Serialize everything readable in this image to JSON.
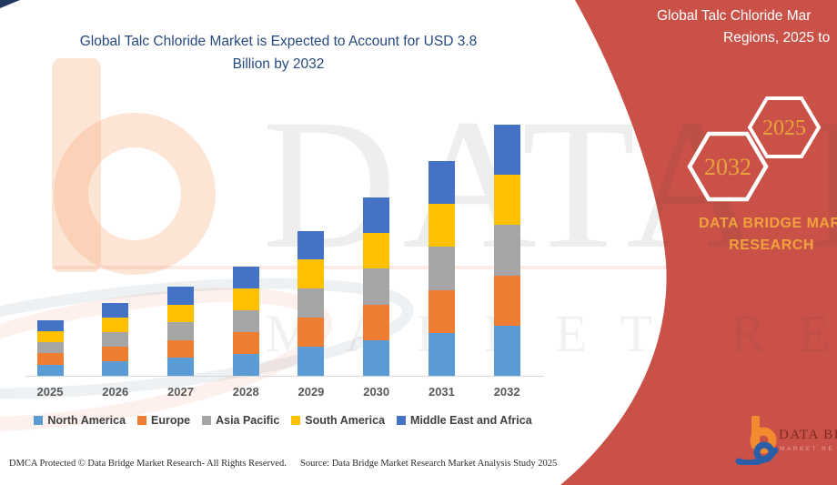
{
  "title": {
    "line1": "Global Talc Chloride Market is Expected to Account for USD 3.8",
    "line2": "Billion by 2032"
  },
  "side_panel": {
    "heading_line1": "Global Talc Chloride Mar",
    "heading_line2": "Regions, 2025 to",
    "hexagon_back_label": "2032",
    "hexagon_front_label": "2025",
    "brand_line1": "DATA BRIDGE MARK",
    "brand_line2": "RESEARCH",
    "panel_color": "#CA5148",
    "accent_text_color": "#E8A33B"
  },
  "logo_badge": {
    "text": "DATA BR",
    "subtext": "MARKET RE"
  },
  "watermark": {
    "line1": "DATA BRIDGE",
    "line2": "MARKET RESEARCH"
  },
  "chart_data": {
    "type": "bar",
    "stacked": true,
    "title": "Global Talc Chloride Market is Expected to Account for USD 3.8 Billion by 2032",
    "unit": "USD Billion",
    "categories": [
      "2025",
      "2026",
      "2027",
      "2028",
      "2029",
      "2030",
      "2031",
      "2032"
    ],
    "series": [
      {
        "name": "North America",
        "color": "#5B9BD5",
        "values": [
          0.17,
          0.22,
          0.27,
          0.33,
          0.44,
          0.54,
          0.65,
          0.76
        ]
      },
      {
        "name": "Europe",
        "color": "#ED7D31",
        "values": [
          0.17,
          0.22,
          0.27,
          0.33,
          0.44,
          0.54,
          0.65,
          0.76
        ]
      },
      {
        "name": "Asia Pacific",
        "color": "#A5A5A5",
        "values": [
          0.17,
          0.22,
          0.27,
          0.33,
          0.44,
          0.54,
          0.65,
          0.76
        ]
      },
      {
        "name": "South America",
        "color": "#FFC000",
        "values": [
          0.17,
          0.22,
          0.27,
          0.33,
          0.44,
          0.54,
          0.65,
          0.76
        ]
      },
      {
        "name": "Middle East and Africa",
        "color": "#4472C4",
        "values": [
          0.17,
          0.22,
          0.27,
          0.33,
          0.44,
          0.54,
          0.65,
          0.76
        ]
      }
    ],
    "totals": [
      0.85,
      1.1,
      1.35,
      1.65,
      2.2,
      2.7,
      3.25,
      3.8
    ],
    "ylim": [
      0,
      4.45
    ],
    "grid": false,
    "y_axis_visible": false,
    "legend_position": "bottom"
  },
  "footer": {
    "dmca": "DMCA Protected © Data Bridge Market Research-  All Rights Reserved.",
    "source": "Source: Data Bridge Market Research  Market Analysis Study 2025"
  }
}
